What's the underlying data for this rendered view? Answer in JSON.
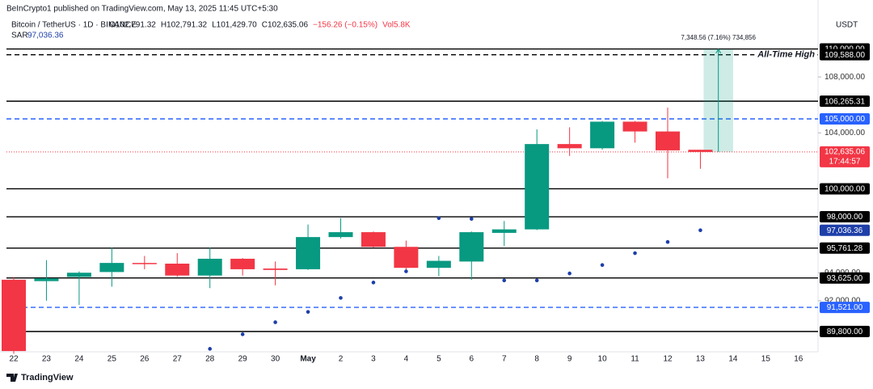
{
  "chart_data": {
    "type": "candlestick",
    "header": {
      "published": "BeInCrypto1 published on TradingView.com, May 13, 2025 11:45 UTC+5:30",
      "symbol": "Bitcoin / TetherUS · 1D · BINANCE",
      "ohlc": [
        "O102,791.32",
        "H102,791.32",
        "L101,429.70",
        "C102,635.06",
        "−156.26 (−0.15%)",
        "Vol5.8K"
      ],
      "indicator": "SAR",
      "indicator_value": "97,036.36"
    },
    "currency": "USDT",
    "watermark": "TradingView",
    "categories": [
      "22",
      "23",
      "24",
      "25",
      "26",
      "27",
      "28",
      "29",
      "30",
      "May",
      "2",
      "3",
      "4",
      "5",
      "6",
      "7",
      "8",
      "9",
      "10",
      "11",
      "12",
      "13",
      "14",
      "15",
      "16"
    ],
    "open": [
      93500,
      93400,
      93700,
      94050,
      94700,
      94650,
      93800,
      95000,
      94300,
      94250,
      96550,
      96900,
      95850,
      94350,
      94800,
      96850,
      97100,
      103200,
      102900,
      104800,
      104100,
      102791.32,
      null,
      null,
      null
    ],
    "high": [
      93700,
      94900,
      94100,
      95800,
      95200,
      95400,
      95800,
      95050,
      94800,
      97450,
      97900,
      96950,
      96300,
      95200,
      96950,
      97700,
      104250,
      104400,
      104850,
      104850,
      105800,
      102791.32,
      null,
      null,
      null
    ],
    "low": [
      88200,
      92000,
      91700,
      93000,
      94250,
      93700,
      92900,
      93800,
      93100,
      94200,
      96450,
      95800,
      94150,
      93750,
      93500,
      95900,
      97050,
      102350,
      102800,
      103300,
      100750,
      101429.7,
      null,
      null,
      null
    ],
    "close": [
      88400,
      93600,
      94000,
      94700,
      94650,
      93800,
      95000,
      94250,
      94200,
      96550,
      96900,
      95850,
      94350,
      94850,
      96900,
      97100,
      103200,
      102900,
      104800,
      104100,
      102750,
      102635.06,
      null,
      null,
      null
    ],
    "up_color": "#089981",
    "down_color": "#f23645",
    "sar": {
      "name": "SAR",
      "color": "#1e3fa8",
      "values": [
        null,
        null,
        null,
        null,
        null,
        null,
        88560,
        89600,
        90460,
        91200,
        92200,
        93300,
        94100,
        97900,
        97850,
        93450,
        93450,
        93950,
        94550,
        95400,
        96200,
        97036.36,
        null,
        null,
        null
      ]
    },
    "ylim": [
      88000,
      113500
    ],
    "yticks": [
      {
        "value": 108000,
        "label": "108,000.00"
      },
      {
        "value": 104000,
        "label": "104,000.00"
      },
      {
        "value": 94000,
        "label": "94,000.00"
      },
      {
        "value": 92000,
        "label": "92,000.00"
      }
    ],
    "levels": [
      {
        "value": 110000,
        "label": "110,000.00",
        "color": "#000000",
        "style": "solid"
      },
      {
        "value": 109588,
        "label": "109,588.00",
        "color": "#000000",
        "style": "dashed"
      },
      {
        "value": 106265.31,
        "label": "106,265.31",
        "color": "#000000",
        "style": "solid"
      },
      {
        "value": 105000,
        "label": "105,000.00",
        "color": "#2962ff",
        "style": "dashed"
      },
      {
        "value": 100000,
        "label": "100,000.00",
        "color": "#000000",
        "style": "solid"
      },
      {
        "value": 98000,
        "label": "98,000.00",
        "color": "#000000",
        "style": "solid"
      },
      {
        "value": 95761.28,
        "label": "95,761.28",
        "color": "#000000",
        "style": "solid"
      },
      {
        "value": 93625,
        "label": "93,625.00",
        "color": "#000000",
        "style": "solid"
      },
      {
        "value": 91521,
        "label": "91,521.00",
        "color": "#2962ff",
        "style": "dashed"
      },
      {
        "value": 89800,
        "label": "89,800.00",
        "color": "#000000",
        "style": "solid"
      }
    ],
    "sar_label": {
      "value": 97036.36,
      "label": "97,036.36"
    },
    "last_price": {
      "value": 102635.06,
      "label": "102,635.06",
      "countdown": "17:44:57",
      "color": "#f23645"
    },
    "annotation": "All-Time High",
    "measure": {
      "from": 102635.06,
      "to": 109983.62,
      "label": "7,348.56 (7.16%) 734,856",
      "color": "#089981"
    }
  }
}
